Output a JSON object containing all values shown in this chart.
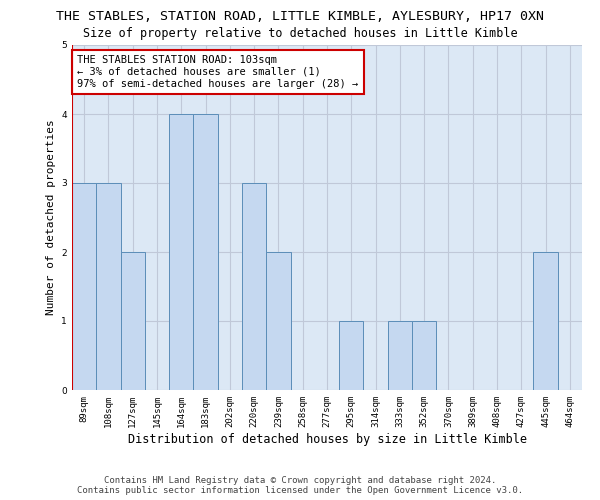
{
  "title": "THE STABLES, STATION ROAD, LITTLE KIMBLE, AYLESBURY, HP17 0XN",
  "subtitle": "Size of property relative to detached houses in Little Kimble",
  "xlabel": "Distribution of detached houses by size in Little Kimble",
  "ylabel": "Number of detached properties",
  "categories": [
    "89sqm",
    "108sqm",
    "127sqm",
    "145sqm",
    "164sqm",
    "183sqm",
    "202sqm",
    "220sqm",
    "239sqm",
    "258sqm",
    "277sqm",
    "295sqm",
    "314sqm",
    "333sqm",
    "352sqm",
    "370sqm",
    "389sqm",
    "408sqm",
    "427sqm",
    "445sqm",
    "464sqm"
  ],
  "values": [
    3,
    3,
    2,
    0,
    4,
    4,
    0,
    3,
    2,
    0,
    0,
    1,
    0,
    1,
    1,
    0,
    0,
    0,
    0,
    2,
    0
  ],
  "bar_color": "#c5d8f0",
  "bar_edge_color": "#5b8db8",
  "highlight_color": "#cc0000",
  "ylim": [
    0,
    5
  ],
  "yticks": [
    0,
    1,
    2,
    3,
    4,
    5
  ],
  "annotation_box_text": "THE STABLES STATION ROAD: 103sqm\n← 3% of detached houses are smaller (1)\n97% of semi-detached houses are larger (28) →",
  "annotation_box_color": "#cc0000",
  "bg_axes_color": "#dce8f5",
  "background_color": "#ffffff",
  "grid_color": "#c0c8d8",
  "footer_text": "Contains HM Land Registry data © Crown copyright and database right 2024.\nContains public sector information licensed under the Open Government Licence v3.0.",
  "title_fontsize": 9.5,
  "subtitle_fontsize": 8.5,
  "ylabel_fontsize": 8,
  "xlabel_fontsize": 8.5,
  "tick_fontsize": 6.5,
  "annotation_fontsize": 7.5,
  "footer_fontsize": 6.5
}
